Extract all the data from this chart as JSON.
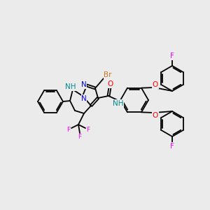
{
  "bg_color": "#EBEBEB",
  "bond_color": "#000000",
  "bond_width": 1.3,
  "atom_colors": {
    "N": "#0000FF",
    "NH": "#008B8B",
    "O": "#FF0000",
    "F": "#FF00FF",
    "Br": "#CC7722",
    "C": "#000000"
  },
  "font_size": 6.5
}
